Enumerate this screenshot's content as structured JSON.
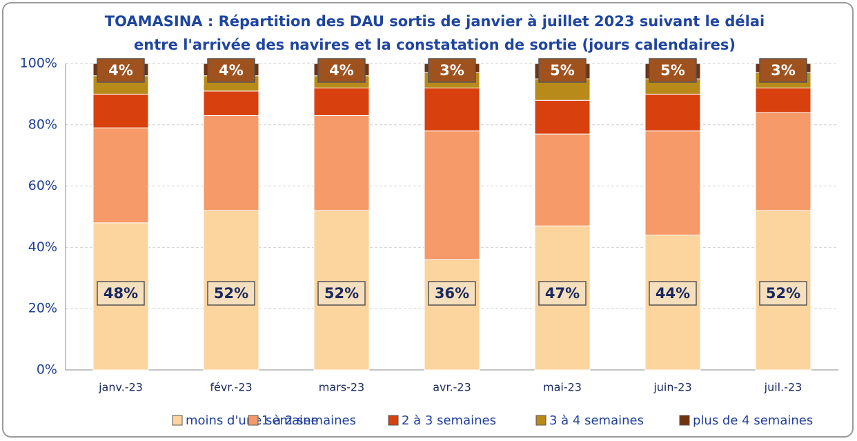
{
  "chart_data": {
    "type": "stacked_bar",
    "title": [
      "TOAMASINA : Répartition des DAU sortis de janvier à juillet 2023 suivant le délai",
      "entre l'arrivée des navires et la constatation de sortie (jours calendaires)"
    ],
    "categories": [
      "janv.-23",
      "févr.-23",
      "mars-23",
      "avr.-23",
      "mai-23",
      "juin-23",
      "juil.-23"
    ],
    "series": [
      {
        "name": "moins d'une semaine",
        "color": "#fcd49e",
        "values": [
          48,
          52,
          52,
          36,
          47,
          44,
          52
        ],
        "value_labels": [
          "48%",
          "52%",
          "52%",
          "36%",
          "47%",
          "44%",
          "52%"
        ]
      },
      {
        "name": "1 à 2 semaines",
        "color": "#f59a68",
        "values": [
          31,
          31,
          31,
          42,
          30,
          34,
          32
        ]
      },
      {
        "name": "2 à 3 semaines",
        "color": "#d8400e",
        "values": [
          11,
          8,
          9,
          14,
          11,
          12,
          8
        ]
      },
      {
        "name": "3 à 4 semaines",
        "color": "#b88a1a",
        "values": [
          6,
          5,
          4,
          5,
          7,
          5,
          5
        ]
      },
      {
        "name": "plus de 4 semaines",
        "color": "#6e3412",
        "values": [
          4,
          4,
          4,
          3,
          5,
          5,
          3
        ],
        "value_labels": [
          "4%",
          "4%",
          "4%",
          "3%",
          "5%",
          "5%",
          "3%"
        ]
      }
    ],
    "ylim": [
      0,
      100
    ],
    "yticks": [
      {
        "value": 0,
        "label": "0%"
      },
      {
        "value": 20,
        "label": "20%"
      },
      {
        "value": 40,
        "label": "40%"
      },
      {
        "value": 60,
        "label": "60%"
      },
      {
        "value": 80,
        "label": "80%"
      },
      {
        "value": 100,
        "label": "100%"
      }
    ],
    "grid": true,
    "legend": "bottom"
  }
}
